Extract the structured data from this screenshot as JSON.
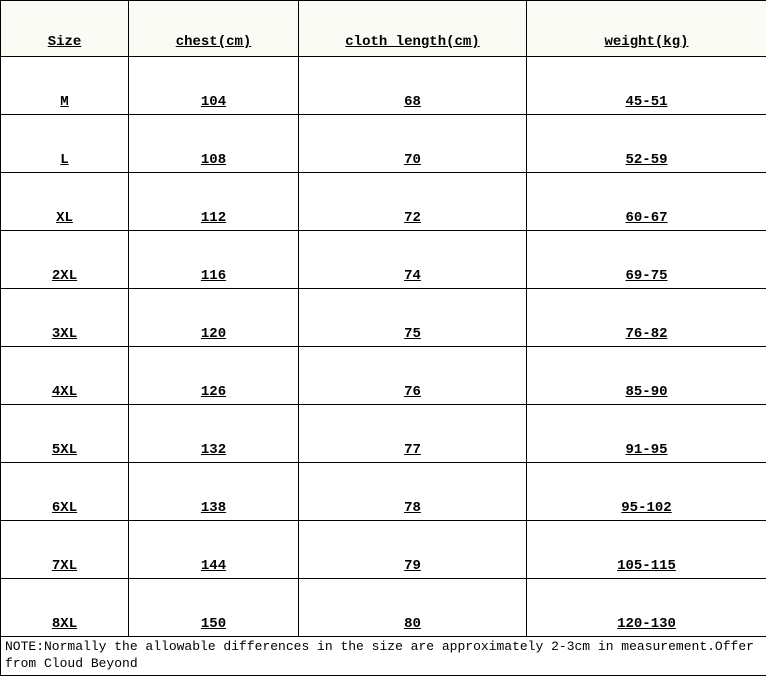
{
  "table": {
    "headers": {
      "size": "Size",
      "chest": "chest(cm)",
      "length": "cloth length(cm)",
      "weight": "weight(kg)"
    },
    "rows": [
      {
        "size": "M",
        "chest": "104",
        "length": "68",
        "weight": "45-51"
      },
      {
        "size": "L",
        "chest": "108",
        "length": "70",
        "weight": "52-59"
      },
      {
        "size": "XL",
        "chest": "112",
        "length": "72",
        "weight": "60-67"
      },
      {
        "size": "2XL",
        "chest": "116",
        "length": "74",
        "weight": "69-75"
      },
      {
        "size": "3XL",
        "chest": "120",
        "length": "75",
        "weight": "76-82"
      },
      {
        "size": "4XL",
        "chest": "126",
        "length": "76",
        "weight": "85-90"
      },
      {
        "size": "5XL",
        "chest": "132",
        "length": "77",
        "weight": "91-95"
      },
      {
        "size": "6XL",
        "chest": "138",
        "length": "78",
        "weight": "95-102"
      },
      {
        "size": "7XL",
        "chest": "144",
        "length": "79",
        "weight": "105-115"
      },
      {
        "size": "8XL",
        "chest": "150",
        "length": "80",
        "weight": "120-130"
      }
    ],
    "note": "NOTE:Normally the allowable differences in the size are approximately 2-3cm in measurement.Offer from Cloud Beyond"
  },
  "colors": {
    "header_bg": "#f9fbf4",
    "border": "#000000",
    "text": "#000000"
  }
}
